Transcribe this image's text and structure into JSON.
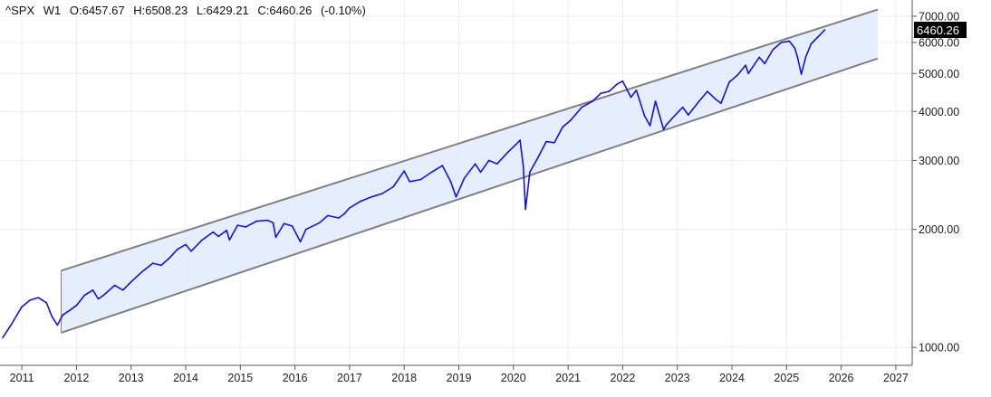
{
  "header": {
    "symbol": "^SPX",
    "timeframe": "W1",
    "open": "O:6457.67",
    "high": "H:6508.23",
    "low": "L:6429.21",
    "close": "C:6460.26",
    "change": "(-0.10%)"
  },
  "last_price_label": "6460.26",
  "colors": {
    "series": "#1212e6",
    "channel_line": "#808080",
    "channel_fill": "#e2eafb",
    "grid": "#ececec",
    "badge_bg": "#000000"
  },
  "chart_data": {
    "type": "line",
    "title": "",
    "xlabel": "",
    "ylabel": "",
    "yscale": "log",
    "grid": true,
    "xlim": [
      2010.6,
      2027.3
    ],
    "ylim": [
      900,
      7700
    ],
    "x_ticks": [
      "2011",
      "2012",
      "2013",
      "2014",
      "2015",
      "2016",
      "2017",
      "2018",
      "2019",
      "2020",
      "2021",
      "2022",
      "2023",
      "2024",
      "2025",
      "2026",
      "2027"
    ],
    "y_ticks": [
      "1000.00",
      "2000.00",
      "3000.00",
      "4000.00",
      "5000.00",
      "6000.00",
      "7000.00"
    ],
    "series": [
      {
        "name": "^SPX",
        "points": [
          [
            2010.65,
            1060
          ],
          [
            2010.8,
            1140
          ],
          [
            2011.0,
            1270
          ],
          [
            2011.15,
            1320
          ],
          [
            2011.3,
            1340
          ],
          [
            2011.45,
            1300
          ],
          [
            2011.55,
            1200
          ],
          [
            2011.65,
            1140
          ],
          [
            2011.75,
            1210
          ],
          [
            2011.9,
            1250
          ],
          [
            2012.0,
            1280
          ],
          [
            2012.15,
            1360
          ],
          [
            2012.3,
            1400
          ],
          [
            2012.4,
            1330
          ],
          [
            2012.5,
            1360
          ],
          [
            2012.7,
            1440
          ],
          [
            2012.85,
            1400
          ],
          [
            2013.0,
            1470
          ],
          [
            2013.2,
            1560
          ],
          [
            2013.4,
            1640
          ],
          [
            2013.55,
            1620
          ],
          [
            2013.7,
            1690
          ],
          [
            2013.85,
            1780
          ],
          [
            2014.0,
            1830
          ],
          [
            2014.1,
            1760
          ],
          [
            2014.3,
            1880
          ],
          [
            2014.5,
            1970
          ],
          [
            2014.6,
            1920
          ],
          [
            2014.75,
            1990
          ],
          [
            2014.8,
            1880
          ],
          [
            2014.95,
            2050
          ],
          [
            2015.1,
            2030
          ],
          [
            2015.3,
            2100
          ],
          [
            2015.5,
            2110
          ],
          [
            2015.6,
            2080
          ],
          [
            2015.65,
            1910
          ],
          [
            2015.8,
            2070
          ],
          [
            2015.95,
            2040
          ],
          [
            2016.1,
            1860
          ],
          [
            2016.2,
            2000
          ],
          [
            2016.45,
            2080
          ],
          [
            2016.6,
            2170
          ],
          [
            2016.8,
            2140
          ],
          [
            2016.9,
            2190
          ],
          [
            2017.0,
            2270
          ],
          [
            2017.2,
            2360
          ],
          [
            2017.4,
            2420
          ],
          [
            2017.6,
            2470
          ],
          [
            2017.8,
            2570
          ],
          [
            2018.0,
            2820
          ],
          [
            2018.1,
            2650
          ],
          [
            2018.3,
            2680
          ],
          [
            2018.5,
            2800
          ],
          [
            2018.7,
            2910
          ],
          [
            2018.85,
            2650
          ],
          [
            2018.95,
            2420
          ],
          [
            2019.1,
            2700
          ],
          [
            2019.3,
            2940
          ],
          [
            2019.4,
            2800
          ],
          [
            2019.55,
            3000
          ],
          [
            2019.7,
            2940
          ],
          [
            2019.9,
            3150
          ],
          [
            2020.05,
            3300
          ],
          [
            2020.12,
            3380
          ],
          [
            2020.18,
            2900
          ],
          [
            2020.22,
            2250
          ],
          [
            2020.3,
            2800
          ],
          [
            2020.45,
            3050
          ],
          [
            2020.6,
            3350
          ],
          [
            2020.75,
            3330
          ],
          [
            2020.9,
            3650
          ],
          [
            2021.05,
            3800
          ],
          [
            2021.25,
            4100
          ],
          [
            2021.45,
            4250
          ],
          [
            2021.6,
            4450
          ],
          [
            2021.75,
            4500
          ],
          [
            2021.9,
            4700
          ],
          [
            2022.0,
            4780
          ],
          [
            2022.15,
            4350
          ],
          [
            2022.25,
            4530
          ],
          [
            2022.4,
            3900
          ],
          [
            2022.5,
            3680
          ],
          [
            2022.6,
            4250
          ],
          [
            2022.75,
            3600
          ],
          [
            2022.8,
            3700
          ],
          [
            2022.95,
            3900
          ],
          [
            2023.1,
            4100
          ],
          [
            2023.2,
            3920
          ],
          [
            2023.4,
            4250
          ],
          [
            2023.55,
            4500
          ],
          [
            2023.7,
            4300
          ],
          [
            2023.8,
            4200
          ],
          [
            2023.95,
            4750
          ],
          [
            2024.1,
            4950
          ],
          [
            2024.25,
            5250
          ],
          [
            2024.3,
            5000
          ],
          [
            2024.5,
            5500
          ],
          [
            2024.6,
            5300
          ],
          [
            2024.75,
            5750
          ],
          [
            2024.9,
            6000
          ],
          [
            2025.05,
            6050
          ],
          [
            2025.15,
            5800
          ],
          [
            2025.2,
            5500
          ],
          [
            2025.27,
            4980
          ],
          [
            2025.35,
            5500
          ],
          [
            2025.45,
            5950
          ],
          [
            2025.6,
            6250
          ],
          [
            2025.7,
            6460
          ]
        ]
      }
    ],
    "channel": {
      "upper": [
        [
          2011.72,
          1570
        ],
        [
          2026.67,
          7280
        ]
      ],
      "lower": [
        [
          2011.72,
          1090
        ],
        [
          2026.67,
          5460
        ]
      ]
    }
  }
}
